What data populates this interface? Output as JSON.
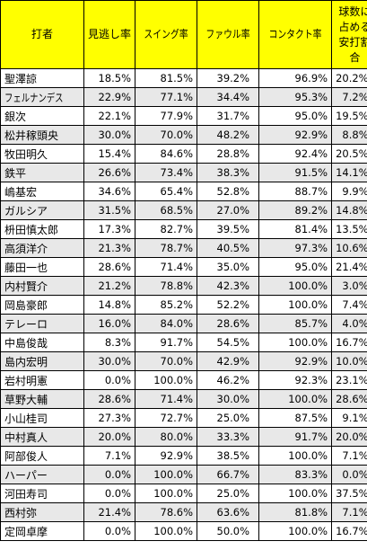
{
  "headers": [
    "打者",
    "見逃し率",
    "スイング率",
    "ファウル率",
    "コンタクト率",
    "球数に\n占める\n安打割合"
  ],
  "rows": [
    [
      "聖澤諒",
      "18.5%",
      "81.5%",
      "39.2%",
      "96.9%",
      "20.2%"
    ],
    [
      "フェルナンデス",
      "22.9%",
      "77.1%",
      "34.4%",
      "95.3%",
      "7.2%"
    ],
    [
      "銀次",
      "22.1%",
      "77.9%",
      "31.7%",
      "95.0%",
      "19.5%"
    ],
    [
      "松井稼頭央",
      "30.0%",
      "70.0%",
      "48.2%",
      "92.9%",
      "8.8%"
    ],
    [
      "牧田明久",
      "15.4%",
      "84.6%",
      "28.8%",
      "92.4%",
      "20.5%"
    ],
    [
      "鉄平",
      "26.6%",
      "73.4%",
      "38.3%",
      "91.5%",
      "14.1%"
    ],
    [
      "嶋基宏",
      "34.6%",
      "65.4%",
      "52.8%",
      "88.7%",
      "9.9%"
    ],
    [
      "ガルシア",
      "31.5%",
      "68.5%",
      "27.0%",
      "89.2%",
      "14.8%"
    ],
    [
      "枡田慎太郎",
      "17.3%",
      "82.7%",
      "39.5%",
      "81.4%",
      "13.5%"
    ],
    [
      "高須洋介",
      "21.3%",
      "78.7%",
      "40.5%",
      "97.3%",
      "10.6%"
    ],
    [
      "藤田一也",
      "28.6%",
      "71.4%",
      "35.0%",
      "95.0%",
      "21.4%"
    ],
    [
      "内村賢介",
      "21.2%",
      "78.8%",
      "42.3%",
      "100.0%",
      "3.0%"
    ],
    [
      "岡島豪郎",
      "14.8%",
      "85.2%",
      "52.2%",
      "100.0%",
      "7.4%"
    ],
    [
      "テレーロ",
      "16.0%",
      "84.0%",
      "28.6%",
      "85.7%",
      "4.0%"
    ],
    [
      "中島俊哉",
      "8.3%",
      "91.7%",
      "54.5%",
      "100.0%",
      "16.7%"
    ],
    [
      "島内宏明",
      "30.0%",
      "70.0%",
      "42.9%",
      "92.9%",
      "10.0%"
    ],
    [
      "岩村明憲",
      "0.0%",
      "100.0%",
      "46.2%",
      "92.3%",
      "23.1%"
    ],
    [
      "草野大輔",
      "28.6%",
      "71.4%",
      "30.0%",
      "100.0%",
      "28.6%"
    ],
    [
      "小山桂司",
      "27.3%",
      "72.7%",
      "25.0%",
      "87.5%",
      "9.1%"
    ],
    [
      "中村真人",
      "20.0%",
      "80.0%",
      "33.3%",
      "91.7%",
      "20.0%"
    ],
    [
      "阿部俊人",
      "7.1%",
      "92.9%",
      "38.5%",
      "100.0%",
      "7.1%"
    ],
    [
      "ハーパー",
      "0.0%",
      "100.0%",
      "66.7%",
      "83.3%",
      "0.0%"
    ],
    [
      "河田寿司",
      "0.0%",
      "100.0%",
      "25.0%",
      "100.0%",
      "37.5%"
    ],
    [
      "西村弥",
      "21.4%",
      "78.6%",
      "63.6%",
      "81.8%",
      "7.1%"
    ],
    [
      "定岡卓摩",
      "0.0%",
      "100.0%",
      "50.0%",
      "100.0%",
      "16.7%"
    ]
  ],
  "colors": {
    "header_bg": "#ffff00",
    "stripe_bg": "#e8e8e8",
    "row_bg": "#ffffff",
    "border": "#000000"
  }
}
